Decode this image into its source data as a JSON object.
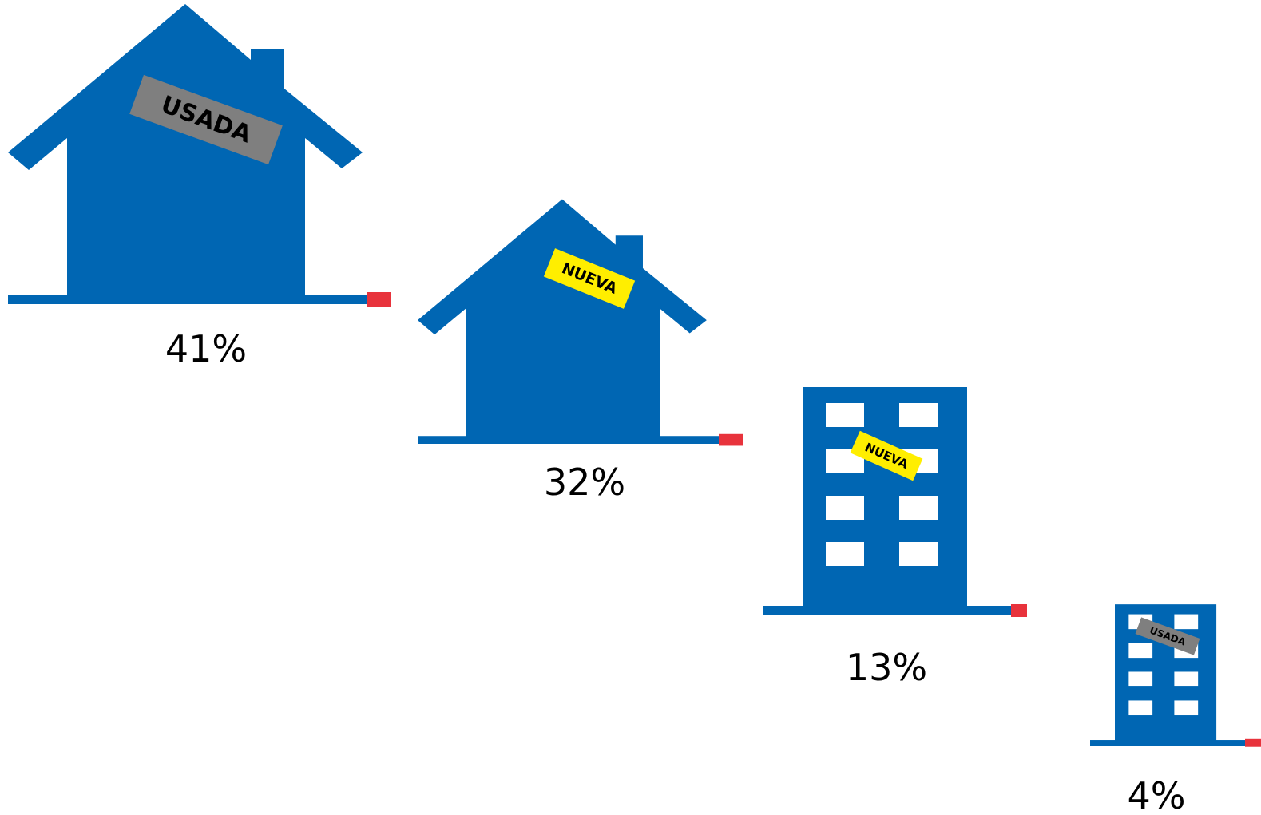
{
  "colors": {
    "building": "#0066b3",
    "ground_end": "#e8333c",
    "tag_new": "#ffee00",
    "tag_used": "#7f7f7f",
    "window": "#ffffff",
    "text": "#000000"
  },
  "chart_data": {
    "type": "bar",
    "categories": [
      "Casa usada",
      "Casa nueva",
      "Departamento nuevo",
      "Departamento usado"
    ],
    "values": [
      41,
      32,
      13,
      4
    ],
    "value_labels": [
      "41%",
      "32%",
      "13%",
      "4%"
    ],
    "tags": [
      "USADA",
      "NUEVA",
      "NUEVA",
      "USADA"
    ],
    "icons": [
      "house-icon",
      "house-icon",
      "apartment-building-icon",
      "apartment-building-icon"
    ],
    "unit": "%"
  }
}
